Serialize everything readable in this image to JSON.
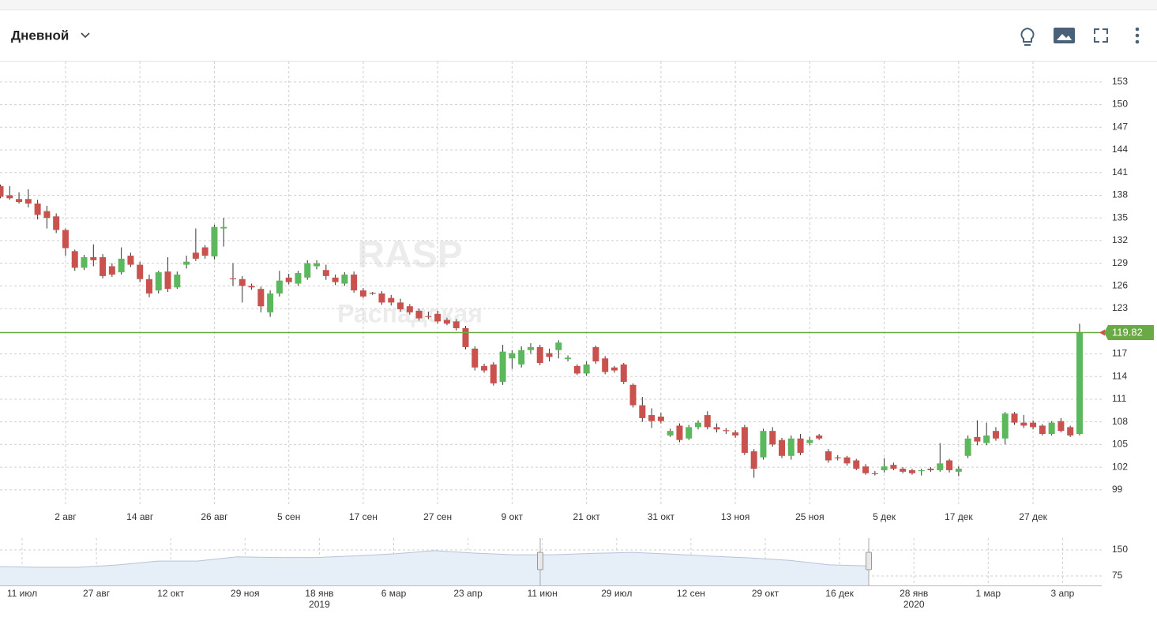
{
  "header": {
    "interval": "Дневной"
  },
  "chart_data": {
    "type": "candlestick",
    "watermark_title": "RASP",
    "watermark_subtitle": "Распадская",
    "up_color": "#5cb85c",
    "down_color": "#c9524f",
    "last_price": 119.82,
    "last_price_color": "#6aaa44",
    "ylim": [
      97.0,
      155.7
    ],
    "yticks": [
      99,
      102,
      105,
      108,
      111,
      114,
      117,
      123,
      126,
      129,
      132,
      135,
      138,
      141,
      144,
      147,
      150,
      153
    ],
    "grid": true,
    "categories": [
      null,
      null,
      null,
      null,
      null,
      null,
      null,
      "2 авг",
      null,
      null,
      null,
      null,
      null,
      null,
      null,
      "14 авг",
      null,
      null,
      null,
      null,
      null,
      null,
      null,
      "26 авг",
      null,
      null,
      null,
      null,
      null,
      null,
      null,
      "5 сен",
      null,
      null,
      null,
      null,
      null,
      null,
      null,
      "17 сен",
      null,
      null,
      null,
      null,
      null,
      null,
      null,
      "27 сен",
      null,
      null,
      null,
      null,
      null,
      null,
      null,
      "9 окт",
      null,
      null,
      null,
      null,
      null,
      null,
      null,
      "21 окт",
      null,
      null,
      null,
      null,
      null,
      null,
      null,
      "31 окт",
      null,
      null,
      null,
      null,
      null,
      null,
      null,
      "13 ноя",
      null,
      null,
      null,
      null,
      null,
      null,
      null,
      "25 ноя",
      null,
      null,
      null,
      null,
      null,
      null,
      null,
      "5 дек",
      null,
      null,
      null,
      null,
      null,
      null,
      null,
      "17 дек",
      null,
      null,
      null,
      null,
      null,
      null,
      null,
      "27 дек",
      null,
      null,
      null,
      null,
      null
    ],
    "open": [
      139.2,
      138.0,
      137.5,
      137.5,
      136.9,
      135.9,
      135.2,
      133.4,
      130.6,
      128.4,
      129.8,
      129.8,
      128.6,
      127.8,
      130.0,
      128.8,
      126.9,
      125.4,
      127.9,
      125.8,
      128.8,
      130.4,
      131.1,
      129.9,
      133.6,
      127.0,
      126.9,
      126.0,
      125.6,
      122.5,
      125.0,
      127.1,
      126.3,
      127.1,
      128.6,
      128.1,
      127.1,
      126.3,
      127.5,
      125.4,
      125.1,
      125.0,
      124.4,
      123.8,
      123.3,
      122.7,
      122.0,
      122.3,
      121.5,
      121.3,
      120.4,
      117.7,
      115.4,
      115.6,
      113.3,
      116.4,
      115.6,
      117.5,
      117.9,
      117.1,
      117.5,
      116.3,
      115.4,
      114.4,
      117.9,
      116.4,
      115.2,
      115.6,
      112.9,
      110.2,
      108.9,
      108.7,
      106.2,
      107.5,
      105.8,
      107.3,
      108.9,
      107.3,
      106.9,
      106.6,
      107.3,
      104.1,
      103.3,
      106.8,
      105.6,
      103.5,
      105.8,
      105.2,
      106.2,
      104.1,
      103.3,
      103.3,
      102.9,
      102.1,
      101.2,
      101.6,
      102.3,
      101.8,
      101.6,
      101.5,
      101.8,
      101.6,
      102.9,
      101.4,
      103.5,
      106.0,
      105.2,
      106.8,
      105.8,
      109.1,
      107.9,
      107.9,
      107.5,
      106.4,
      108.1,
      107.3,
      106.4
    ],
    "high": [
      139.4,
      139.2,
      138.4,
      138.8,
      137.4,
      136.6,
      135.6,
      133.6,
      130.8,
      130.1,
      131.5,
      130.2,
      129.0,
      131.1,
      130.4,
      129.2,
      127.5,
      128.0,
      129.8,
      127.9,
      130.0,
      133.6,
      131.4,
      134.1,
      135.0,
      129.0,
      127.3,
      126.3,
      125.9,
      125.4,
      128.0,
      127.6,
      128.0,
      129.4,
      129.4,
      128.8,
      127.5,
      127.8,
      127.9,
      125.7,
      125.2,
      125.3,
      124.8,
      124.3,
      123.6,
      123.0,
      122.6,
      122.7,
      121.8,
      121.6,
      120.7,
      118.0,
      115.7,
      115.9,
      118.2,
      117.5,
      118.0,
      118.4,
      118.2,
      117.7,
      118.8,
      116.8,
      115.6,
      116.0,
      118.1,
      116.7,
      115.4,
      115.8,
      113.1,
      111.3,
      109.8,
      109.2,
      107.1,
      107.8,
      107.6,
      108.2,
      109.4,
      107.8,
      107.2,
      106.9,
      107.6,
      104.4,
      107.1,
      107.3,
      105.9,
      106.2,
      106.4,
      106.0,
      106.4,
      104.4,
      103.6,
      103.5,
      103.1,
      102.4,
      101.5,
      103.2,
      102.6,
      102.0,
      101.8,
      101.8,
      102.0,
      105.2,
      103.1,
      102.1,
      106.2,
      108.2,
      107.9,
      107.3,
      109.3,
      109.3,
      108.9,
      108.2,
      107.7,
      108.1,
      108.5,
      107.5,
      121.0
    ],
    "low": [
      137.6,
      137.4,
      136.9,
      136.4,
      134.8,
      133.6,
      133.0,
      130.0,
      128.0,
      128.1,
      128.6,
      127.0,
      127.2,
      127.5,
      128.5,
      126.5,
      124.5,
      125.0,
      125.2,
      125.6,
      128.3,
      129.3,
      129.6,
      129.5,
      131.2,
      126.0,
      123.8,
      125.5,
      122.5,
      121.9,
      124.6,
      126.2,
      126.0,
      126.8,
      128.2,
      126.8,
      126.1,
      126.0,
      125.1,
      124.4,
      124.8,
      123.5,
      123.4,
      122.6,
      122.2,
      121.4,
      121.6,
      121.0,
      120.8,
      120.1,
      117.6,
      114.8,
      114.5,
      112.8,
      112.9,
      115.0,
      115.2,
      117.0,
      115.5,
      116.0,
      116.4,
      116.0,
      114.2,
      114.1,
      115.7,
      114.3,
      114.5,
      113.0,
      109.9,
      108.0,
      107.2,
      107.8,
      106.0,
      105.3,
      105.6,
      107.0,
      107.0,
      106.6,
      106.4,
      105.9,
      103.6,
      100.6,
      103.0,
      104.7,
      103.2,
      103.0,
      103.6,
      104.9,
      105.6,
      102.6,
      102.9,
      102.2,
      101.6,
      101.0,
      100.9,
      101.3,
      101.6,
      101.2,
      101.0,
      100.9,
      101.4,
      101.4,
      101.3,
      100.8,
      103.2,
      104.9,
      104.9,
      105.5,
      105.0,
      107.6,
      107.2,
      107.0,
      106.2,
      106.2,
      106.6,
      106.0,
      106.2
    ],
    "close": [
      137.8,
      137.6,
      137.1,
      136.9,
      135.4,
      135.0,
      133.4,
      131.0,
      128.4,
      129.8,
      129.4,
      127.3,
      127.5,
      129.6,
      128.8,
      126.9,
      125.0,
      127.8,
      125.6,
      127.5,
      129.2,
      129.6,
      130.0,
      133.8,
      133.8,
      126.9,
      126.0,
      125.8,
      123.3,
      125.0,
      126.7,
      126.5,
      127.7,
      129.0,
      129.0,
      127.3,
      126.5,
      127.5,
      125.4,
      124.6,
      125.0,
      123.8,
      123.8,
      122.9,
      122.5,
      121.7,
      121.9,
      121.3,
      121.0,
      120.4,
      117.9,
      115.2,
      114.8,
      113.1,
      117.3,
      117.1,
      117.5,
      117.9,
      115.8,
      116.6,
      118.5,
      116.5,
      114.4,
      115.6,
      116.0,
      114.6,
      114.8,
      113.3,
      110.2,
      108.5,
      108.1,
      108.1,
      106.8,
      105.6,
      107.3,
      107.9,
      107.3,
      107.0,
      106.8,
      106.2,
      103.9,
      101.8,
      106.8,
      105.0,
      103.5,
      105.8,
      103.9,
      105.6,
      105.8,
      102.9,
      103.2,
      102.5,
      101.8,
      101.2,
      101.1,
      102.1,
      101.8,
      101.4,
      101.2,
      101.6,
      101.6,
      102.5,
      101.6,
      101.8,
      105.8,
      105.4,
      106.2,
      105.8,
      109.1,
      107.9,
      107.5,
      107.3,
      106.4,
      107.9,
      106.8,
      106.2,
      119.82
    ]
  },
  "navigator": {
    "type": "area",
    "color": "#e6eef8",
    "line_color": "#b4c4d8",
    "values": [
      102,
      100,
      100,
      107,
      118,
      118,
      130,
      128,
      128,
      133,
      139,
      148,
      141,
      136,
      136,
      140,
      143,
      138,
      132,
      127,
      120,
      107,
      104
    ],
    "ylim": [
      47.7,
      184.1
    ],
    "yticks": [
      75,
      150
    ],
    "xticks": [
      "11 июл",
      "27 авг",
      "12 окт",
      "29 ноя",
      "18 янв",
      "6 мар",
      "23 апр",
      "11 июн",
      "29 июл",
      "12 сен",
      "29 окт",
      "16 дек",
      "28 янв",
      "1 мар",
      "3 апр"
    ],
    "year_labels": [
      null,
      null,
      null,
      null,
      "2019",
      null,
      null,
      null,
      null,
      null,
      null,
      null,
      "2020",
      null,
      null
    ]
  }
}
